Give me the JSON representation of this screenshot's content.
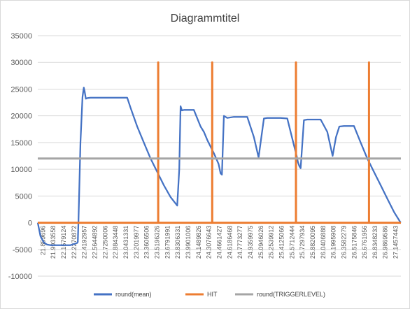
{
  "chart_data": {
    "type": "line",
    "title": "Diagrammtitel",
    "xlabel": "",
    "ylabel": "",
    "ylim": [
      -10000,
      35000
    ],
    "yticks": [
      -10000,
      -5000,
      0,
      5000,
      10000,
      15000,
      20000,
      25000,
      30000,
      35000
    ],
    "grid": true,
    "legend_position": "bottom",
    "xlim": [
      21.859696,
      27.303293
    ],
    "x_tick_labels": [
      "21.859696",
      "21.9933558",
      "22.1579124",
      "22.2270872",
      "22.4192957",
      "22.5644892",
      "22.7250006",
      "22.8843448",
      "23.0431331",
      "23.2019977",
      "23.3606506",
      "23.5196326",
      "23.6791991",
      "23.8306331",
      "23.9901006",
      "24.1489826",
      "24.3076643",
      "24.4661427",
      "24.6186468",
      "24.7773277",
      "24.9359975",
      "25.0946026",
      "25.2539912",
      "25.4125066",
      "25.5712444",
      "25.7297934",
      "25.8820095",
      "26.0406888",
      "26.1995908",
      "26.3582279",
      "26.5175846",
      "26.6761956",
      "26.8348233",
      "26.9869586",
      "27.1457443"
    ],
    "series": [
      {
        "name": "round(mean)",
        "color": "#4472c4",
        "x": [
          21.8597,
          21.9,
          21.95,
          22.0,
          22.05,
          22.1,
          22.2,
          22.3,
          22.35,
          22.4,
          22.45,
          22.46,
          22.47,
          22.5,
          22.53,
          22.55,
          22.56,
          22.58,
          22.6,
          22.65,
          22.7,
          22.8,
          22.9,
          23.0,
          23.1,
          23.2,
          23.25,
          23.35,
          23.45,
          23.55,
          23.65,
          23.75,
          23.85,
          23.95,
          23.98,
          24.0,
          24.02,
          24.05,
          24.1,
          24.2,
          24.3,
          24.35,
          24.4,
          24.5,
          24.57,
          24.6,
          24.62,
          24.65,
          24.7,
          24.8,
          24.9,
          25.0,
          25.1,
          25.17,
          25.2,
          25.25,
          25.3,
          25.4,
          25.5,
          25.6,
          25.7,
          25.74,
          25.76,
          25.78,
          25.8,
          25.85,
          25.9,
          26.0,
          26.1,
          26.2,
          26.28,
          26.33,
          26.38,
          26.45,
          26.5,
          26.55,
          26.6,
          26.7,
          26.8,
          26.9,
          27.0,
          27.1,
          27.2,
          27.3
        ],
        "y": [
          0,
          -2500,
          -3700,
          -4100,
          -4200,
          -4200,
          -4200,
          -4200,
          -4200,
          -4000,
          -3800,
          -3600,
          500,
          15000,
          23500,
          25300,
          24700,
          23200,
          23300,
          23400,
          23400,
          23400,
          23400,
          23400,
          23400,
          23400,
          21500,
          18000,
          15000,
          12000,
          9500,
          7000,
          4800,
          3200,
          10000,
          21800,
          21000,
          21100,
          21100,
          21100,
          18000,
          17000,
          15500,
          13000,
          11000,
          9200,
          9000,
          20000,
          19600,
          19800,
          19800,
          19800,
          16000,
          12200,
          15000,
          19500,
          19600,
          19600,
          19600,
          19500,
          14500,
          12500,
          11300,
          10600,
          10200,
          19200,
          19300,
          19300,
          19300,
          17000,
          12500,
          16000,
          18000,
          18100,
          18100,
          18100,
          18100,
          15000,
          12000,
          9500,
          7000,
          4500,
          2000,
          0
        ]
      },
      {
        "name": "HIT",
        "color": "#ed7d31",
        "x": [
          21.8597,
          23.665,
          23.665,
          23.665,
          24.475,
          24.475,
          24.475,
          25.73,
          25.73,
          25.73,
          26.825,
          26.825,
          26.825,
          27.3033
        ],
        "y": [
          0,
          0,
          30000,
          0,
          0,
          30000,
          0,
          0,
          30000,
          0,
          0,
          30000,
          0,
          0
        ]
      },
      {
        "name": "round(TRIGGERLEVEL)",
        "color": "#a5a5a5",
        "x": [
          21.8597,
          27.3033
        ],
        "y": [
          12000,
          12000
        ]
      }
    ]
  }
}
